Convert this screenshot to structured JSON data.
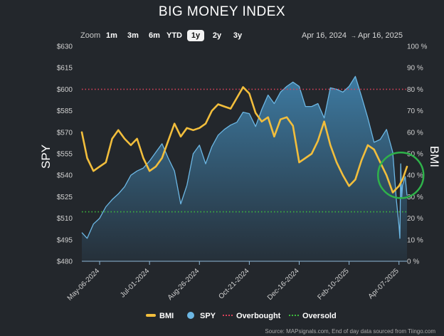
{
  "header": {
    "title": "BIG MONEY INDEX"
  },
  "toolbar": {
    "zoom_label": "Zoom",
    "zoom_options": [
      "1m",
      "3m",
      "6m",
      "YTD",
      "1y",
      "2y",
      "3y"
    ],
    "active_zoom": "1y",
    "range_start": "Apr 16, 2024",
    "range_arrow": "→",
    "range_end": "Apr 16, 2025"
  },
  "footer": {
    "source": "Source: MAPsignals.com, End of day data sourced from Tiingo.com"
  },
  "colors": {
    "background": "#23272c",
    "bmi": "#f2be3c",
    "spy_line": "#6cb7e4",
    "spy_fill_top": "#3f7fa8",
    "spy_fill_bottom": "#26313b",
    "overbought": "#d9415a",
    "oversold": "#3dbb3d",
    "highlight_circle": "#2fb24a"
  },
  "chart_data": {
    "type": "line",
    "title": "BIG MONEY INDEX",
    "x_range": [
      "2024-04-16",
      "2025-04-16"
    ],
    "x_tick_labels": [
      "May-06-2024",
      "Jul-01-2024",
      "Aug-26-2024",
      "Oct-21-2024",
      "Dec-16-2024",
      "Feb-10-2025",
      "Apr-07-2025"
    ],
    "x_tick_dates": [
      "2024-05-06",
      "2024-07-01",
      "2024-08-26",
      "2024-10-21",
      "2024-12-16",
      "2025-02-10",
      "2025-04-07"
    ],
    "left_axis": {
      "label": "SPY",
      "range": [
        480,
        630
      ],
      "ticks": [
        480,
        495,
        510,
        525,
        540,
        555,
        570,
        585,
        600,
        615,
        630
      ],
      "tick_labels": [
        "$480",
        "$495",
        "$510",
        "$525",
        "$540",
        "$555",
        "$570",
        "$585",
        "$600",
        "$615",
        "$630"
      ]
    },
    "right_axis": {
      "label": "BMI",
      "range": [
        0,
        100
      ],
      "ticks": [
        0,
        10,
        20,
        30,
        40,
        50,
        60,
        70,
        80,
        90,
        100
      ],
      "tick_labels": [
        "0 %",
        "10 %",
        "20 %",
        "30 %",
        "40 %",
        "50 %",
        "60 %",
        "70 %",
        "80 %",
        "90 %",
        "100 %"
      ]
    },
    "reference_lines": [
      {
        "name": "Overbought",
        "axis": "right",
        "value": 80
      },
      {
        "name": "Oversold",
        "axis": "right",
        "value": 23
      }
    ],
    "legend_position": "bottom",
    "legend": [
      "BMI",
      "SPY",
      "Overbought",
      "Oversold"
    ],
    "series": [
      {
        "name": "BMI",
        "axis": "right",
        "type": "line",
        "points": [
          [
            "2024-04-16",
            60
          ],
          [
            "2024-04-22",
            48
          ],
          [
            "2024-04-29",
            42
          ],
          [
            "2024-05-06",
            44
          ],
          [
            "2024-05-13",
            46
          ],
          [
            "2024-05-20",
            57
          ],
          [
            "2024-05-27",
            61
          ],
          [
            "2024-06-03",
            57
          ],
          [
            "2024-06-10",
            54
          ],
          [
            "2024-06-17",
            57
          ],
          [
            "2024-06-24",
            48
          ],
          [
            "2024-07-01",
            42
          ],
          [
            "2024-07-08",
            44
          ],
          [
            "2024-07-15",
            48
          ],
          [
            "2024-07-22",
            56
          ],
          [
            "2024-07-29",
            64
          ],
          [
            "2024-08-05",
            58
          ],
          [
            "2024-08-12",
            62
          ],
          [
            "2024-08-19",
            61
          ],
          [
            "2024-08-26",
            62
          ],
          [
            "2024-09-02",
            64
          ],
          [
            "2024-09-09",
            70
          ],
          [
            "2024-09-16",
            73
          ],
          [
            "2024-09-23",
            72
          ],
          [
            "2024-09-30",
            71
          ],
          [
            "2024-10-07",
            76
          ],
          [
            "2024-10-14",
            81
          ],
          [
            "2024-10-21",
            78
          ],
          [
            "2024-10-28",
            69
          ],
          [
            "2024-11-04",
            65
          ],
          [
            "2024-11-11",
            67
          ],
          [
            "2024-11-18",
            58
          ],
          [
            "2024-11-25",
            66
          ],
          [
            "2024-12-02",
            67
          ],
          [
            "2024-12-09",
            63
          ],
          [
            "2024-12-16",
            46
          ],
          [
            "2024-12-23",
            48
          ],
          [
            "2024-12-30",
            50
          ],
          [
            "2025-01-06",
            56
          ],
          [
            "2025-01-13",
            65
          ],
          [
            "2025-01-20",
            54
          ],
          [
            "2025-01-27",
            46
          ],
          [
            "2025-02-03",
            40
          ],
          [
            "2025-02-10",
            35
          ],
          [
            "2025-02-17",
            38
          ],
          [
            "2025-02-24",
            47
          ],
          [
            "2025-03-03",
            54
          ],
          [
            "2025-03-10",
            52
          ],
          [
            "2025-03-17",
            46
          ],
          [
            "2025-03-24",
            40
          ],
          [
            "2025-03-31",
            32
          ],
          [
            "2025-04-07",
            35
          ],
          [
            "2025-04-11",
            38
          ],
          [
            "2025-04-16",
            44
          ]
        ]
      },
      {
        "name": "SPY",
        "axis": "left",
        "type": "area",
        "points": [
          [
            "2024-04-16",
            500
          ],
          [
            "2024-04-22",
            496
          ],
          [
            "2024-04-29",
            506
          ],
          [
            "2024-05-06",
            510
          ],
          [
            "2024-05-13",
            518
          ],
          [
            "2024-05-20",
            523
          ],
          [
            "2024-05-27",
            527
          ],
          [
            "2024-06-03",
            532
          ],
          [
            "2024-06-10",
            540
          ],
          [
            "2024-06-17",
            543
          ],
          [
            "2024-06-24",
            545
          ],
          [
            "2024-07-01",
            550
          ],
          [
            "2024-07-08",
            556
          ],
          [
            "2024-07-15",
            562
          ],
          [
            "2024-07-22",
            552
          ],
          [
            "2024-07-29",
            543
          ],
          [
            "2024-08-05",
            520
          ],
          [
            "2024-08-12",
            533
          ],
          [
            "2024-08-19",
            555
          ],
          [
            "2024-08-26",
            561
          ],
          [
            "2024-09-02",
            548
          ],
          [
            "2024-09-09",
            560
          ],
          [
            "2024-09-16",
            568
          ],
          [
            "2024-09-23",
            572
          ],
          [
            "2024-09-30",
            575
          ],
          [
            "2024-10-07",
            577
          ],
          [
            "2024-10-14",
            584
          ],
          [
            "2024-10-21",
            583
          ],
          [
            "2024-10-28",
            574
          ],
          [
            "2024-11-04",
            586
          ],
          [
            "2024-11-11",
            596
          ],
          [
            "2024-11-18",
            590
          ],
          [
            "2024-11-25",
            598
          ],
          [
            "2024-12-02",
            602
          ],
          [
            "2024-12-09",
            605
          ],
          [
            "2024-12-16",
            602
          ],
          [
            "2024-12-23",
            588
          ],
          [
            "2024-12-30",
            588
          ],
          [
            "2025-01-06",
            590
          ],
          [
            "2025-01-13",
            580
          ],
          [
            "2025-01-20",
            601
          ],
          [
            "2025-01-27",
            600
          ],
          [
            "2025-02-03",
            598
          ],
          [
            "2025-02-10",
            602
          ],
          [
            "2025-02-17",
            609
          ],
          [
            "2025-02-24",
            595
          ],
          [
            "2025-03-03",
            580
          ],
          [
            "2025-03-10",
            563
          ],
          [
            "2025-03-17",
            565
          ],
          [
            "2025-03-24",
            572
          ],
          [
            "2025-03-31",
            556
          ],
          [
            "2025-04-04",
            523
          ],
          [
            "2025-04-07",
            505
          ],
          [
            "2025-04-08",
            496
          ],
          [
            "2025-04-09",
            548
          ],
          [
            "2025-04-10",
            524
          ],
          [
            "2025-04-11",
            533
          ],
          [
            "2025-04-14",
            539
          ],
          [
            "2025-04-16",
            526
          ]
        ]
      }
    ],
    "annotations": [
      {
        "type": "circle",
        "color": "green",
        "at_date": "2025-04-09",
        "at_bmi": 40
      }
    ]
  }
}
